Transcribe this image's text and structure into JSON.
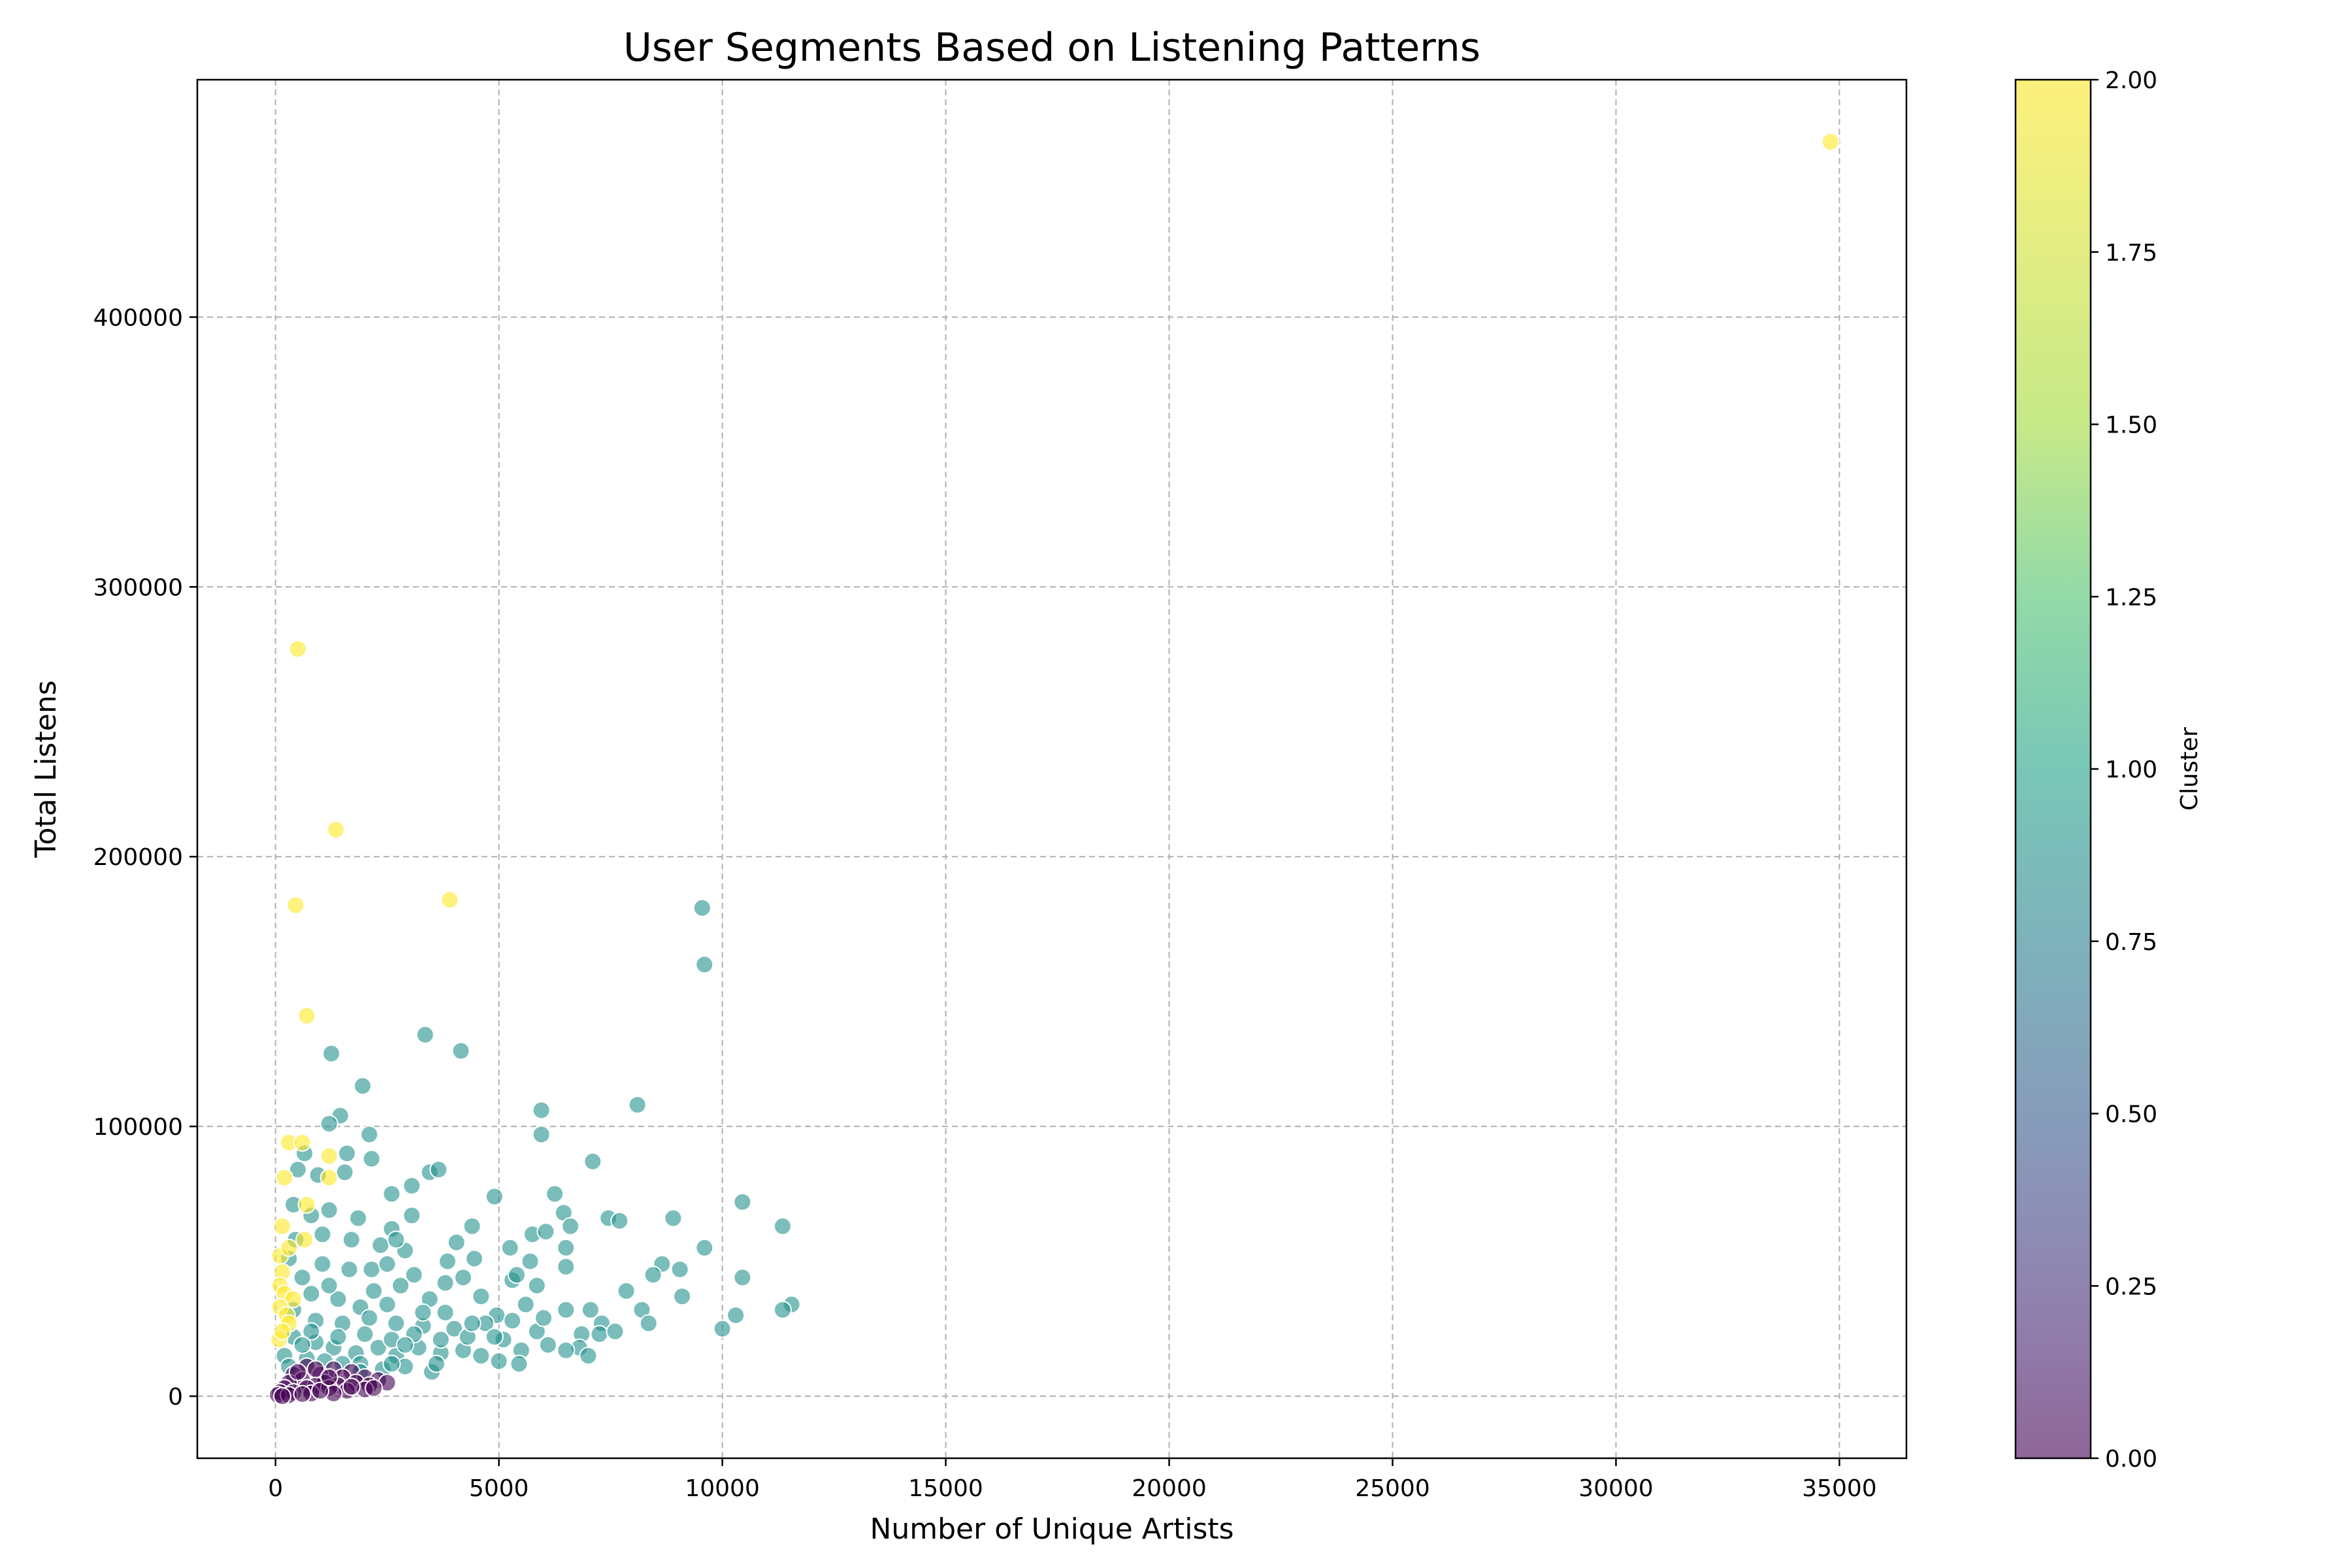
{
  "chart_data": {
    "type": "scatter",
    "title": "User Segments Based on Listening Patterns",
    "xlabel": "Number of Unique Artists",
    "ylabel": "Total Listens",
    "xlim": [
      -1750,
      36500
    ],
    "ylim": [
      -23000,
      488000
    ],
    "x_ticks": [
      0,
      5000,
      10000,
      15000,
      20000,
      25000,
      30000,
      35000
    ],
    "y_ticks": [
      0,
      100000,
      200000,
      300000,
      400000
    ],
    "x_tick_labels": [
      "0",
      "5000",
      "10000",
      "15000",
      "20000",
      "25000",
      "30000",
      "35000"
    ],
    "y_tick_labels": [
      "0",
      "100000",
      "200000",
      "300000",
      "400000"
    ],
    "grid": true,
    "colorbar": {
      "label": "Cluster",
      "range": [
        0,
        2
      ],
      "ticks": [
        0,
        0.25,
        0.5,
        0.75,
        1.0,
        1.25,
        1.5,
        1.75,
        2.0
      ],
      "tick_labels": [
        "0.00",
        "0.25",
        "0.50",
        "0.75",
        "1.00",
        "1.25",
        "1.50",
        "1.75",
        "2.00"
      ],
      "colormap": "viridis"
    },
    "cluster_colors": {
      "0": "#440154",
      "1": "#21918c",
      "2": "#fde725"
    },
    "series": [
      {
        "cluster": 2,
        "points": [
          [
            34800,
            465000
          ],
          [
            500,
            277000
          ],
          [
            1350,
            210000
          ],
          [
            450,
            182000
          ],
          [
            3900,
            184000
          ],
          [
            700,
            141000
          ],
          [
            300,
            94000
          ],
          [
            600,
            94000
          ],
          [
            1200,
            89000
          ],
          [
            200,
            81000
          ],
          [
            1200,
            81000
          ],
          [
            700,
            71000
          ],
          [
            150,
            63000
          ],
          [
            650,
            58000
          ],
          [
            100,
            52000
          ],
          [
            300,
            55000
          ],
          [
            150,
            46000
          ],
          [
            100,
            41000
          ],
          [
            200,
            38000
          ],
          [
            400,
            36000
          ],
          [
            100,
            33000
          ],
          [
            250,
            30000
          ],
          [
            300,
            27000
          ],
          [
            80,
            21000
          ],
          [
            150,
            24000
          ]
        ]
      },
      {
        "cluster": 1,
        "points": [
          [
            9550,
            181000
          ],
          [
            9600,
            160000
          ],
          [
            3350,
            134000
          ],
          [
            4150,
            128000
          ],
          [
            1250,
            127000
          ],
          [
            1950,
            115000
          ],
          [
            8100,
            108000
          ],
          [
            5950,
            106000
          ],
          [
            1450,
            104000
          ],
          [
            1200,
            101000
          ],
          [
            2100,
            97000
          ],
          [
            5950,
            97000
          ],
          [
            650,
            90000
          ],
          [
            1600,
            90000
          ],
          [
            2150,
            88000
          ],
          [
            7100,
            87000
          ],
          [
            3450,
            83000
          ],
          [
            3650,
            84000
          ],
          [
            1550,
            83000
          ],
          [
            500,
            84000
          ],
          [
            950,
            82000
          ],
          [
            3050,
            78000
          ],
          [
            6250,
            75000
          ],
          [
            4900,
            74000
          ],
          [
            2600,
            75000
          ],
          [
            10450,
            72000
          ],
          [
            6450,
            68000
          ],
          [
            400,
            71000
          ],
          [
            1200,
            69000
          ],
          [
            800,
            67000
          ],
          [
            3050,
            67000
          ],
          [
            7450,
            66000
          ],
          [
            7700,
            65000
          ],
          [
            8900,
            66000
          ],
          [
            11350,
            63000
          ],
          [
            1850,
            66000
          ],
          [
            4400,
            63000
          ],
          [
            6600,
            63000
          ],
          [
            5750,
            60000
          ],
          [
            6050,
            61000
          ],
          [
            2600,
            62000
          ],
          [
            4050,
            57000
          ],
          [
            9600,
            55000
          ],
          [
            5250,
            55000
          ],
          [
            6500,
            55000
          ],
          [
            2350,
            56000
          ],
          [
            1050,
            60000
          ],
          [
            2900,
            54000
          ],
          [
            4450,
            51000
          ],
          [
            3850,
            50000
          ],
          [
            5700,
            50000
          ],
          [
            8650,
            49000
          ],
          [
            9050,
            47000
          ],
          [
            10450,
            44000
          ],
          [
            8450,
            45000
          ],
          [
            5300,
            43000
          ],
          [
            5850,
            41000
          ],
          [
            7850,
            39000
          ],
          [
            9100,
            37000
          ],
          [
            6500,
            48000
          ],
          [
            4200,
            44000
          ],
          [
            3450,
            36000
          ],
          [
            2150,
            47000
          ],
          [
            2800,
            41000
          ],
          [
            1650,
            47000
          ],
          [
            1050,
            49000
          ],
          [
            600,
            44000
          ],
          [
            300,
            51000
          ],
          [
            450,
            58000
          ],
          [
            11550,
            34000
          ],
          [
            11350,
            32000
          ],
          [
            7050,
            32000
          ],
          [
            8200,
            32000
          ],
          [
            6500,
            32000
          ],
          [
            5600,
            34000
          ],
          [
            4950,
            30000
          ],
          [
            3800,
            31000
          ],
          [
            2500,
            34000
          ],
          [
            1900,
            33000
          ],
          [
            1400,
            36000
          ],
          [
            800,
            38000
          ],
          [
            8350,
            27000
          ],
          [
            10300,
            30000
          ],
          [
            7300,
            27000
          ],
          [
            7250,
            23000
          ],
          [
            7600,
            24000
          ],
          [
            6850,
            23000
          ],
          [
            10000,
            25000
          ],
          [
            5850,
            24000
          ],
          [
            4700,
            27000
          ],
          [
            4000,
            25000
          ],
          [
            3300,
            26000
          ],
          [
            2700,
            27000
          ],
          [
            2100,
            29000
          ],
          [
            1500,
            27000
          ],
          [
            900,
            28000
          ],
          [
            400,
            32000
          ],
          [
            6800,
            18000
          ],
          [
            7000,
            15000
          ],
          [
            6500,
            17000
          ],
          [
            6100,
            19000
          ],
          [
            5500,
            17000
          ],
          [
            5450,
            12000
          ],
          [
            5000,
            13000
          ],
          [
            4600,
            15000
          ],
          [
            4200,
            17000
          ],
          [
            3700,
            16000
          ],
          [
            3200,
            18000
          ],
          [
            2700,
            15000
          ],
          [
            2300,
            18000
          ],
          [
            1800,
            16000
          ],
          [
            1300,
            18000
          ],
          [
            900,
            20000
          ],
          [
            400,
            22000
          ],
          [
            200,
            15000
          ],
          [
            3500,
            9000
          ],
          [
            2900,
            11000
          ],
          [
            2400,
            10000
          ],
          [
            1900,
            12000
          ],
          [
            1500,
            12000
          ],
          [
            1100,
            13000
          ],
          [
            700,
            14000
          ],
          [
            300,
            11000
          ],
          [
            4300,
            22000
          ],
          [
            3700,
            21000
          ],
          [
            3100,
            23000
          ],
          [
            2600,
            21000
          ],
          [
            2000,
            23000
          ],
          [
            1400,
            22000
          ],
          [
            800,
            24000
          ],
          [
            5100,
            21000
          ],
          [
            4600,
            37000
          ],
          [
            3100,
            45000
          ],
          [
            2200,
            39000
          ],
          [
            1700,
            58000
          ],
          [
            2700,
            58000
          ],
          [
            3800,
            42000
          ],
          [
            5400,
            45000
          ],
          [
            6000,
            29000
          ],
          [
            4900,
            22000
          ],
          [
            3300,
            31000
          ],
          [
            2500,
            49000
          ],
          [
            1200,
            41000
          ],
          [
            600,
            19000
          ],
          [
            1900,
            9000
          ],
          [
            2600,
            12000
          ],
          [
            4400,
            27000
          ],
          [
            5300,
            28000
          ],
          [
            3600,
            12000
          ],
          [
            2900,
            19000
          ]
        ]
      },
      {
        "cluster": 0,
        "points": [
          [
            700,
            11000
          ],
          [
            1300,
            10000
          ],
          [
            1700,
            9000
          ],
          [
            400,
            8000
          ],
          [
            1000,
            8000
          ],
          [
            1500,
            7000
          ],
          [
            2000,
            7000
          ],
          [
            2300,
            6000
          ],
          [
            600,
            6000
          ],
          [
            1100,
            5000
          ],
          [
            1800,
            5000
          ],
          [
            300,
            5000
          ],
          [
            900,
            4000
          ],
          [
            1400,
            4000
          ],
          [
            2100,
            4000
          ],
          [
            2500,
            5000
          ],
          [
            200,
            3000
          ],
          [
            700,
            3000
          ],
          [
            1200,
            3000
          ],
          [
            1600,
            2000
          ],
          [
            2000,
            2500
          ],
          [
            100,
            1500
          ],
          [
            400,
            1500
          ],
          [
            800,
            1000
          ],
          [
            1300,
            1000
          ],
          [
            50,
            500
          ],
          [
            300,
            400
          ],
          [
            600,
            800
          ],
          [
            1000,
            2000
          ],
          [
            150,
            0
          ],
          [
            1700,
            3500
          ],
          [
            2200,
            3000
          ],
          [
            500,
            9000
          ],
          [
            900,
            10000
          ],
          [
            1200,
            7000
          ]
        ]
      }
    ]
  }
}
